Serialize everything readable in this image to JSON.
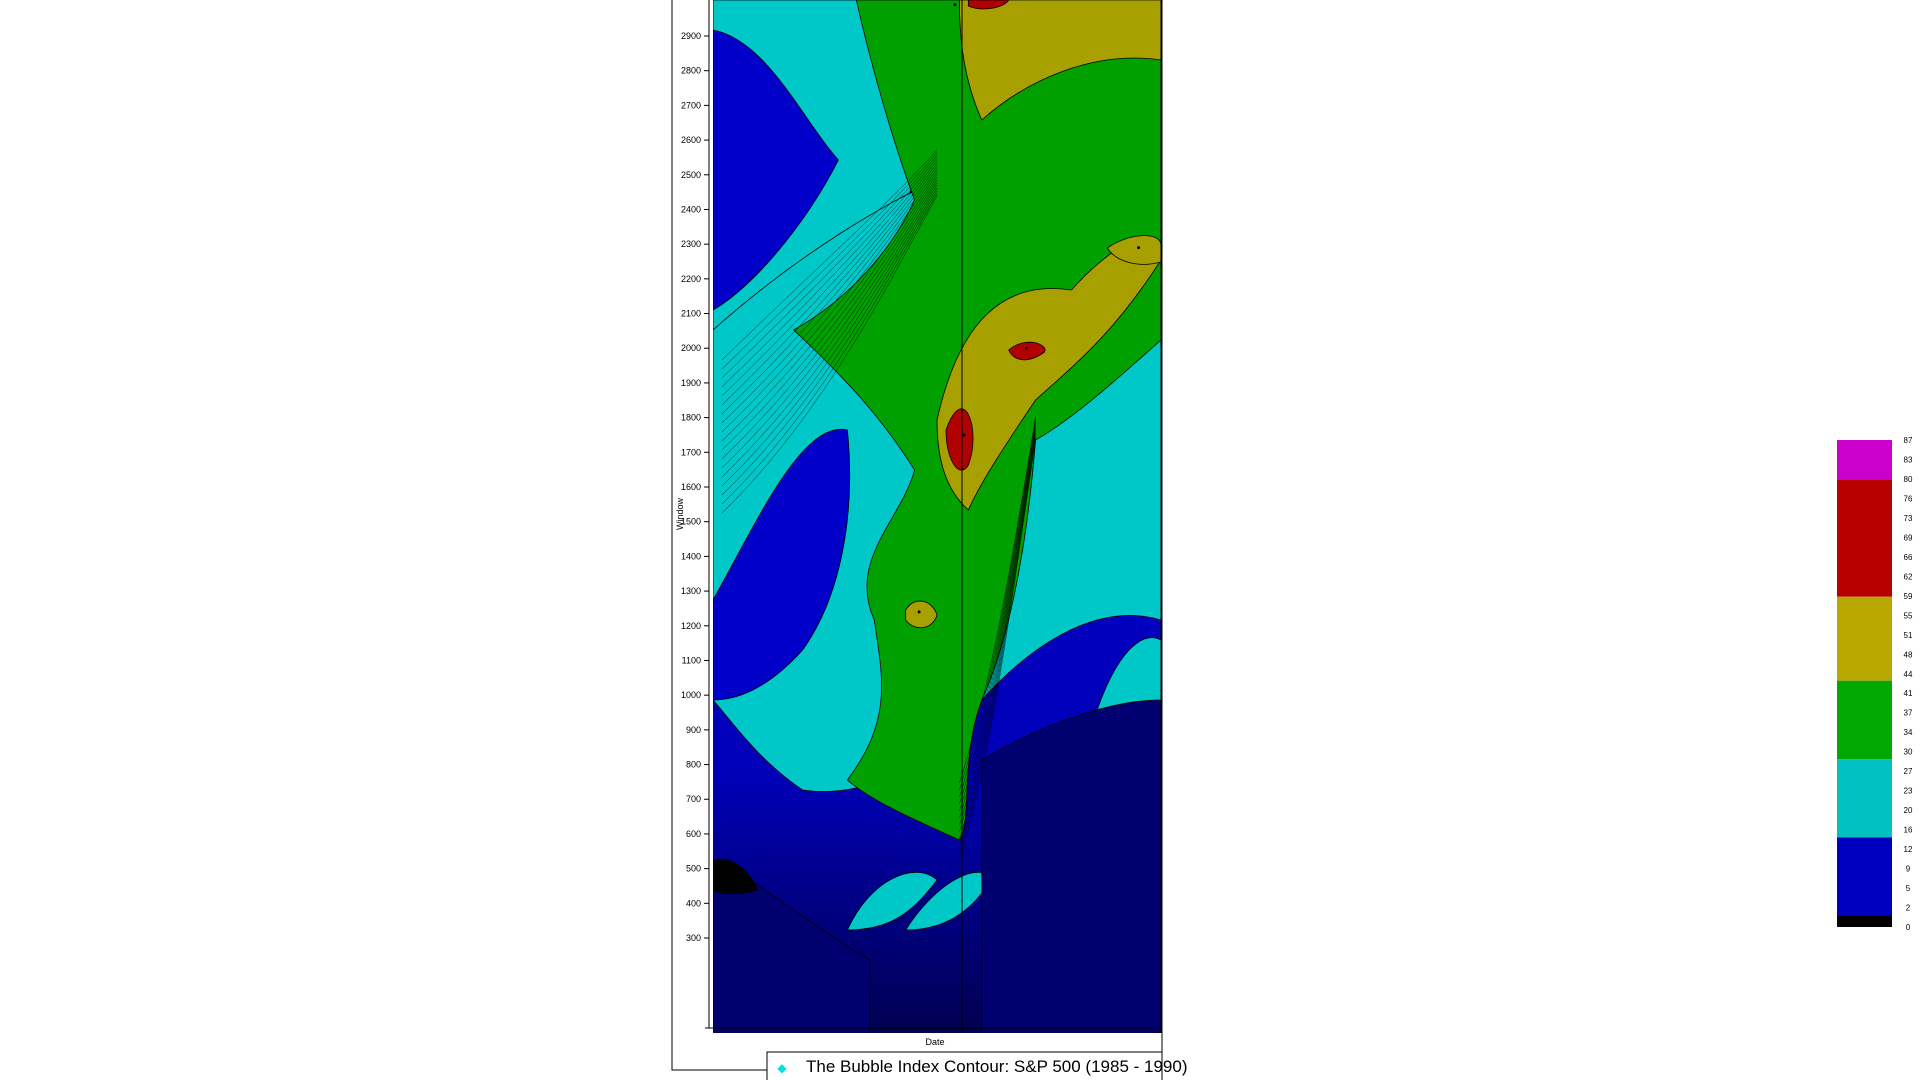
{
  "chart_data": {
    "type": "heatmap",
    "title": "",
    "xlabel": "Date",
    "ylabel": "Window",
    "ylim": [
      0,
      3000
    ],
    "y_ticks": [
      300,
      400,
      500,
      600,
      700,
      800,
      900,
      1000,
      1100,
      1200,
      1300,
      1400,
      1500,
      1600,
      1700,
      1800,
      1900,
      2000,
      2100,
      2200,
      2300,
      2400,
      2500,
      2600,
      2700,
      2800,
      2900
    ],
    "legend": {
      "label": "The Bubble Index Contour: S&P 500 (1985 - 1990)",
      "marker_color": "#00e0e0",
      "placement": "bottom-right"
    },
    "colorbar": {
      "levels": [
        "87",
        "83",
        "80",
        "76",
        "73",
        "69",
        "66",
        "62",
        "59",
        "55",
        "51",
        "48",
        "44",
        "41",
        "37",
        "34",
        "30",
        "27",
        "23",
        "20",
        "16",
        "12",
        "9",
        "5",
        "2",
        "0"
      ],
      "bands": [
        {
          "min": 80,
          "max": 87,
          "color": "#cc00cc"
        },
        {
          "min": 59,
          "max": 80,
          "color": "#b80000"
        },
        {
          "min": 44,
          "max": 59,
          "color": "#b8a800"
        },
        {
          "min": 30,
          "max": 44,
          "color": "#00a800"
        },
        {
          "min": 16,
          "max": 30,
          "color": "#00c0c0"
        },
        {
          "min": 0,
          "max": 16,
          "color": "#0000c0"
        }
      ]
    },
    "peaks": [
      {
        "x_frac": 0.56,
        "window": 1750,
        "value": 70
      },
      {
        "x_frac": 0.7,
        "window": 2000,
        "value": 66
      },
      {
        "x_frac": 0.54,
        "window": 2990,
        "value": 68
      },
      {
        "x_frac": 0.46,
        "window": 1240,
        "value": 46
      },
      {
        "x_frac": 0.95,
        "window": 2290,
        "value": 47
      }
    ],
    "colors": {
      "low": "#000060",
      "cyan": "#00c8c8",
      "green": "#00a000",
      "olive": "#a8a000",
      "red": "#b00000"
    }
  }
}
